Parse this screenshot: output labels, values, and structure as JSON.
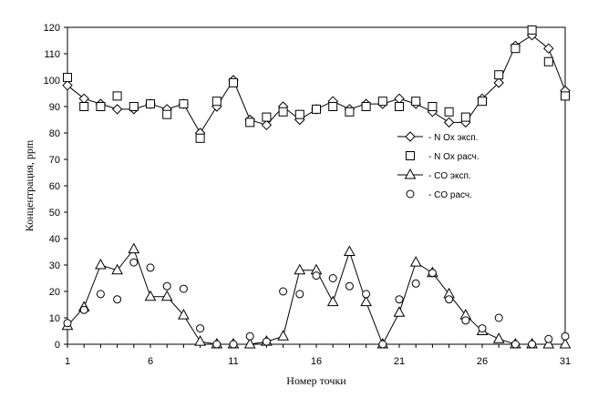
{
  "chart_data": {
    "type": "line",
    "xlabel": "Номер точки",
    "ylabel": "Концентрация, ppm",
    "xlim": [
      1,
      31
    ],
    "ylim": [
      0,
      120
    ],
    "x_ticks": [
      1,
      6,
      11,
      16,
      21,
      26,
      31
    ],
    "y_ticks": [
      0,
      10,
      20,
      30,
      40,
      50,
      60,
      70,
      80,
      90,
      100,
      110,
      120
    ],
    "grid": false,
    "legend_position": "middle-right",
    "x": [
      1,
      2,
      3,
      4,
      5,
      6,
      7,
      8,
      9,
      10,
      11,
      12,
      13,
      14,
      15,
      16,
      17,
      18,
      19,
      20,
      21,
      22,
      23,
      24,
      25,
      26,
      27,
      28,
      29,
      30,
      31
    ],
    "series": [
      {
        "name": "- N Ox эксп.",
        "marker": "diamond",
        "line": true,
        "values": [
          98,
          93,
          91,
          89,
          89,
          91,
          89,
          91,
          80,
          90,
          100,
          85,
          83,
          90,
          85,
          89,
          92,
          89,
          91,
          91,
          93,
          91,
          88,
          84,
          84,
          93,
          99,
          113,
          117,
          112,
          96
        ]
      },
      {
        "name": "- N Ox расч.",
        "marker": "square",
        "line": false,
        "values": [
          101,
          90,
          90,
          94,
          90,
          91,
          87,
          91,
          78,
          92,
          99,
          84,
          86,
          88,
          87,
          89,
          90,
          88,
          90,
          92,
          90,
          92,
          90,
          88,
          86,
          92,
          102,
          112,
          119,
          107,
          94
        ]
      },
      {
        "name": "- CO эксп.",
        "marker": "triangle",
        "line": true,
        "values": [
          7,
          14,
          30,
          28,
          36,
          18,
          18,
          11,
          1,
          0,
          0,
          0,
          1,
          3,
          28,
          28,
          16,
          35,
          16,
          0,
          12,
          31,
          27,
          19,
          11,
          5,
          2,
          0,
          0,
          0,
          0
        ]
      },
      {
        "name": "- CO расч.",
        "marker": "circle",
        "line": false,
        "values": [
          8,
          13,
          19,
          17,
          31,
          29,
          22,
          21,
          6,
          0,
          0,
          3,
          1,
          20,
          19,
          26,
          25,
          22,
          19,
          0,
          17,
          23,
          27,
          17,
          9,
          6,
          10,
          0,
          0,
          2,
          3
        ]
      }
    ]
  }
}
